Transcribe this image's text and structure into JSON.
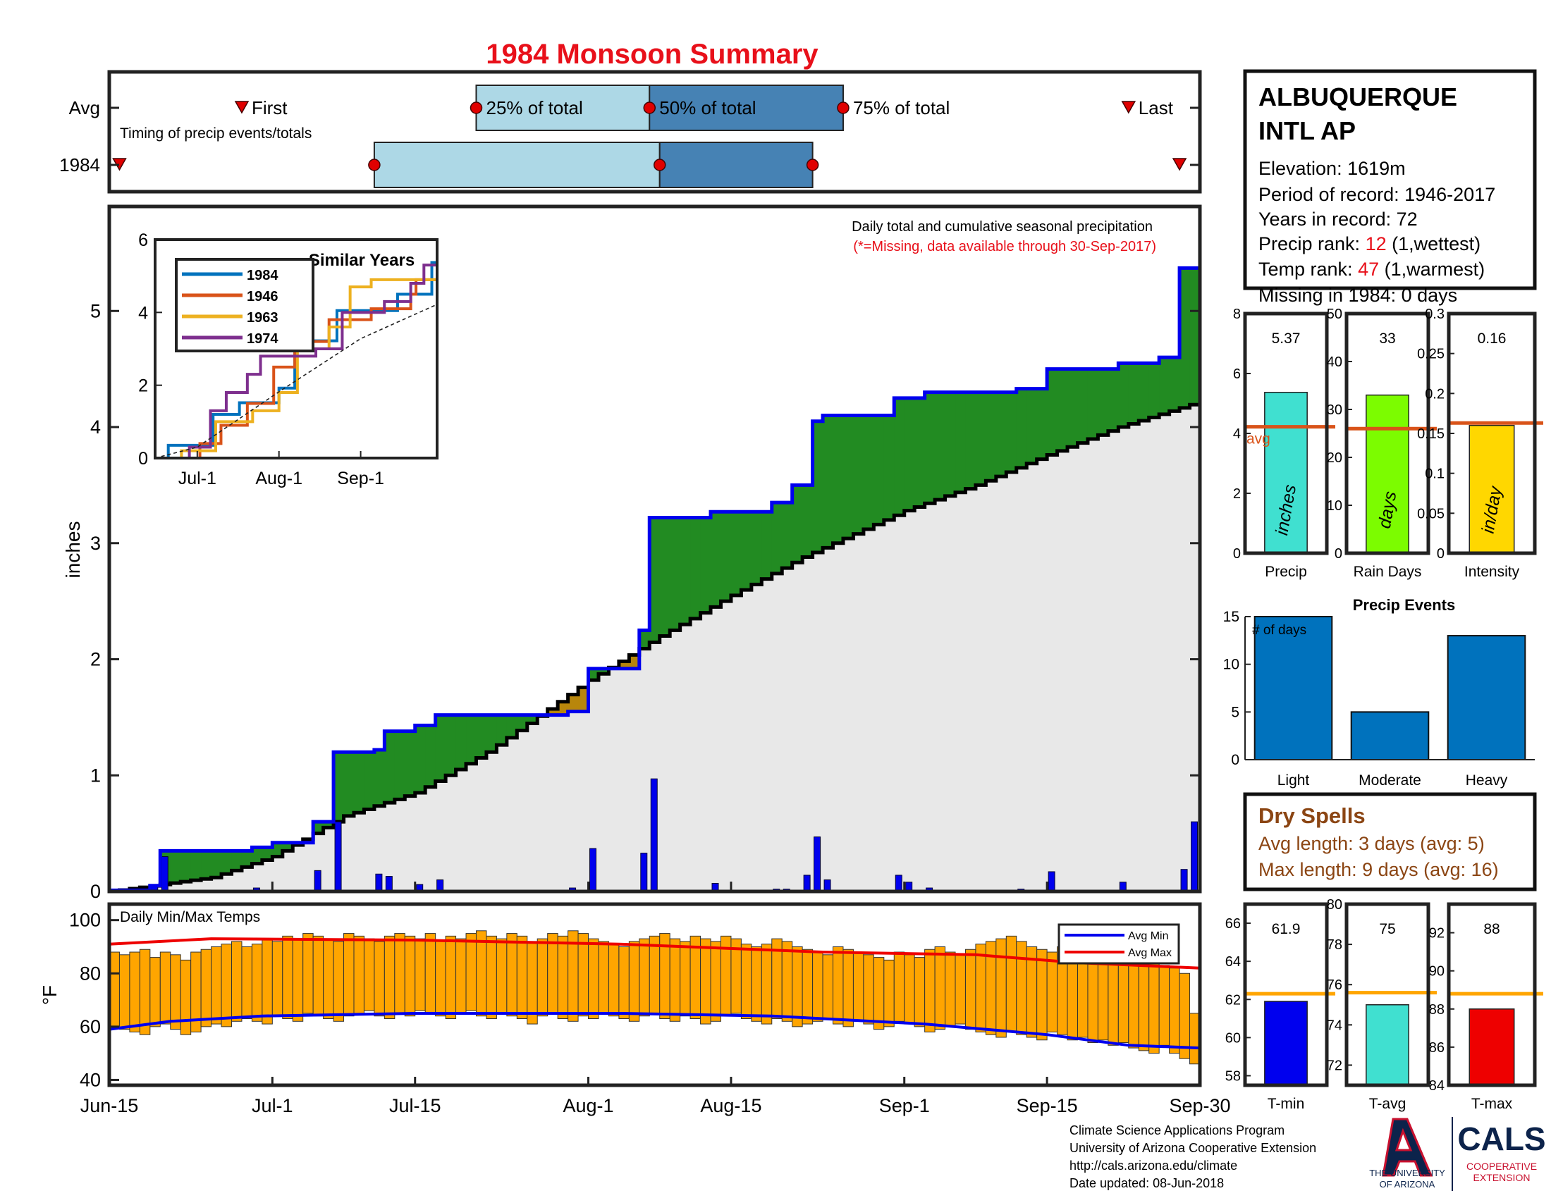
{
  "title": "1984 Monsoon Summary",
  "timing": {
    "row_labels": [
      "Avg",
      "1984"
    ],
    "first_label": "First",
    "last_label": "Last",
    "p25_label": "25% of total",
    "p50_label": "50% of total",
    "p75_label": "75% of total",
    "caption": "Timing of precip events/totals",
    "avg": {
      "first": "2017-06-28",
      "p25": "2017-07-21",
      "p50": "2017-08-07",
      "p75": "2017-08-26",
      "last": "2017-09-23"
    },
    "year": {
      "first": "2017-06-16",
      "p25": "2017-07-11",
      "p50": "2017-08-08",
      "p75": "2017-08-23",
      "last": "2017-09-28"
    }
  },
  "station": {
    "name_line1": "ALBUQUERQUE",
    "name_line2": "INTL AP",
    "elevation": "Elevation: 1619m",
    "period": "Period of record: 1946-2017",
    "years": "Years in record: 72",
    "precip_rank_label": "Precip rank: ",
    "precip_rank_value": "12",
    "precip_rank_suffix": " (1,wettest)",
    "temp_rank_label": "Temp rank: ",
    "temp_rank_value": "47",
    "temp_rank_suffix": " (1,warmest)",
    "missing": "Missing in 1984: 0 days"
  },
  "main_chart": {
    "ylabel": "inches",
    "legend_line1": "Daily total and cumulative seasonal precipitation",
    "legend_line2": "(*=Missing, data available through 30-Sep-2017)",
    "yticks": [
      0,
      1,
      2,
      3,
      4,
      5
    ],
    "xticks": [
      {
        "label": "Jun-15",
        "date": "2017-06-15"
      },
      {
        "label": "Jul-1",
        "date": "2017-07-01"
      },
      {
        "label": "Jul-15",
        "date": "2017-07-15"
      },
      {
        "label": "Aug-1",
        "date": "2017-08-01"
      },
      {
        "label": "Aug-15",
        "date": "2017-08-15"
      },
      {
        "label": "Sep-1",
        "date": "2017-09-01"
      },
      {
        "label": "Sep-15",
        "date": "2017-09-15"
      },
      {
        "label": "Sep-30",
        "date": "2017-09-30"
      }
    ],
    "colors": {
      "above": "#228B22",
      "below": "#B8860B",
      "cum": "#0000EE",
      "avg_fill": "#E8E8E8",
      "daily": "#0000EE"
    }
  },
  "inset": {
    "title": "Similar Years",
    "yticks": [
      0,
      2,
      4,
      6
    ],
    "xticks": [
      {
        "label": "Jul-1",
        "date": "2017-07-01"
      },
      {
        "label": "Aug-1",
        "date": "2017-08-01"
      },
      {
        "label": "Sep-1",
        "date": "2017-09-01"
      }
    ],
    "legend": [
      {
        "name": "1984",
        "color": "#0072BD"
      },
      {
        "name": "1946",
        "color": "#D95319"
      },
      {
        "name": "1963",
        "color": "#EDB120"
      },
      {
        "name": "1974",
        "color": "#7E2F8E"
      }
    ]
  },
  "chart_data": [
    {
      "type": "area",
      "id": "cumulative-precip",
      "xlabel": "",
      "ylabel": "inches",
      "ylim": [
        0,
        5.9
      ],
      "x_range": [
        "2017-06-15",
        "2017-09-30"
      ],
      "series": [
        {
          "name": "1984",
          "points": [
            [
              "2017-06-15",
              0.01
            ],
            [
              "2017-06-19",
              0.05
            ],
            [
              "2017-06-20",
              0.35
            ],
            [
              "2017-06-29",
              0.38
            ],
            [
              "2017-07-01",
              0.42
            ],
            [
              "2017-07-05",
              0.6
            ],
            [
              "2017-07-07",
              1.2
            ],
            [
              "2017-07-11",
              1.22
            ],
            [
              "2017-07-12",
              1.38
            ],
            [
              "2017-07-15",
              1.43
            ],
            [
              "2017-07-17",
              1.52
            ],
            [
              "2017-07-30",
              1.55
            ],
            [
              "2017-08-01",
              1.92
            ],
            [
              "2017-08-06",
              2.25
            ],
            [
              "2017-08-07",
              3.22
            ],
            [
              "2017-08-13",
              3.27
            ],
            [
              "2017-08-19",
              3.35
            ],
            [
              "2017-08-21",
              3.5
            ],
            [
              "2017-08-23",
              4.05
            ],
            [
              "2017-08-24",
              4.1
            ],
            [
              "2017-08-31",
              4.25
            ],
            [
              "2017-09-03",
              4.3
            ],
            [
              "2017-09-12",
              4.33
            ],
            [
              "2017-09-15",
              4.5
            ],
            [
              "2017-09-22",
              4.55
            ],
            [
              "2017-09-26",
              4.6
            ],
            [
              "2017-09-28",
              5.37
            ],
            [
              "2017-09-30",
              5.37
            ]
          ]
        },
        {
          "name": "avg",
          "points": [
            [
              "2017-06-15",
              0.0
            ],
            [
              "2017-06-25",
              0.12
            ],
            [
              "2017-07-01",
              0.3
            ],
            [
              "2017-07-08",
              0.65
            ],
            [
              "2017-07-15",
              0.85
            ],
            [
              "2017-07-22",
              1.2
            ],
            [
              "2017-08-01",
              1.82
            ],
            [
              "2017-08-08",
              2.2
            ],
            [
              "2017-08-15",
              2.55
            ],
            [
              "2017-08-22",
              2.88
            ],
            [
              "2017-09-01",
              3.28
            ],
            [
              "2017-09-08",
              3.5
            ],
            [
              "2017-09-15",
              3.76
            ],
            [
              "2017-09-22",
              4.0
            ],
            [
              "2017-09-30",
              4.22
            ]
          ]
        }
      ],
      "daily": [
        [
          "2017-06-16",
          0.01
        ],
        [
          "2017-06-17",
          0.01
        ],
        [
          "2017-06-19",
          0.04
        ],
        [
          "2017-06-20",
          0.3
        ],
        [
          "2017-06-29",
          0.03
        ],
        [
          "2017-07-05",
          0.18
        ],
        [
          "2017-07-07",
          0.6
        ],
        [
          "2017-07-11",
          0.15
        ],
        [
          "2017-07-12",
          0.13
        ],
        [
          "2017-07-15",
          0.06
        ],
        [
          "2017-07-17",
          0.1
        ],
        [
          "2017-07-18",
          0.01
        ],
        [
          "2017-07-30",
          0.03
        ],
        [
          "2017-08-01",
          0.37
        ],
        [
          "2017-08-06",
          0.33
        ],
        [
          "2017-08-07",
          0.97
        ],
        [
          "2017-08-13",
          0.07
        ],
        [
          "2017-08-19",
          0.02
        ],
        [
          "2017-08-20",
          0.02
        ],
        [
          "2017-08-22",
          0.14
        ],
        [
          "2017-08-23",
          0.47
        ],
        [
          "2017-08-24",
          0.1
        ],
        [
          "2017-08-31",
          0.14
        ],
        [
          "2017-09-01",
          0.08
        ],
        [
          "2017-09-03",
          0.03
        ],
        [
          "2017-09-12",
          0.02
        ],
        [
          "2017-09-15",
          0.17
        ],
        [
          "2017-09-22",
          0.08
        ],
        [
          "2017-09-28",
          0.19
        ],
        [
          "2017-09-29",
          0.6
        ]
      ]
    },
    {
      "type": "line",
      "id": "similar-years",
      "title": "Similar Years",
      "ylim": [
        0,
        6
      ],
      "x_range": [
        "2017-06-15",
        "2017-09-30"
      ],
      "series": [
        {
          "name": "1984",
          "points": [
            [
              "2017-06-15",
              0.0
            ],
            [
              "2017-06-20",
              0.35
            ],
            [
              "2017-07-07",
              1.2
            ],
            [
              "2017-07-17",
              1.52
            ],
            [
              "2017-08-01",
              1.92
            ],
            [
              "2017-08-07",
              3.22
            ],
            [
              "2017-08-23",
              4.05
            ],
            [
              "2017-09-15",
              4.5
            ],
            [
              "2017-09-28",
              5.37
            ],
            [
              "2017-09-30",
              5.37
            ]
          ]
        },
        {
          "name": "1946",
          "points": [
            [
              "2017-06-15",
              0.0
            ],
            [
              "2017-07-02",
              0.4
            ],
            [
              "2017-07-10",
              0.9
            ],
            [
              "2017-07-20",
              1.5
            ],
            [
              "2017-07-30",
              2.5
            ],
            [
              "2017-08-07",
              3.2
            ],
            [
              "2017-08-20",
              3.8
            ],
            [
              "2017-09-05",
              4.1
            ],
            [
              "2017-09-20",
              4.5
            ],
            [
              "2017-09-22",
              4.9
            ],
            [
              "2017-09-30",
              4.9
            ]
          ]
        },
        {
          "name": "1963",
          "points": [
            [
              "2017-06-15",
              0.0
            ],
            [
              "2017-06-25",
              0.2
            ],
            [
              "2017-07-08",
              1.0
            ],
            [
              "2017-07-22",
              1.3
            ],
            [
              "2017-08-01",
              1.8
            ],
            [
              "2017-08-08",
              3.0
            ],
            [
              "2017-08-20",
              3.6
            ],
            [
              "2017-08-28",
              4.7
            ],
            [
              "2017-09-05",
              4.9
            ],
            [
              "2017-09-30",
              4.95
            ]
          ]
        },
        {
          "name": "1974",
          "points": [
            [
              "2017-06-15",
              0.0
            ],
            [
              "2017-06-28",
              0.3
            ],
            [
              "2017-07-06",
              1.3
            ],
            [
              "2017-07-12",
              1.8
            ],
            [
              "2017-07-20",
              2.3
            ],
            [
              "2017-07-25",
              2.8
            ],
            [
              "2017-08-15",
              3.0
            ],
            [
              "2017-08-25",
              4.0
            ],
            [
              "2017-09-10",
              4.3
            ],
            [
              "2017-09-20",
              4.8
            ],
            [
              "2017-09-25",
              5.3
            ],
            [
              "2017-09-30",
              5.3
            ]
          ]
        },
        {
          "name": "avg",
          "points": [
            [
              "2017-06-15",
              0.0
            ],
            [
              "2017-07-01",
              0.3
            ],
            [
              "2017-08-01",
              1.82
            ],
            [
              "2017-09-01",
              3.28
            ],
            [
              "2017-09-30",
              4.22
            ]
          ]
        }
      ]
    },
    {
      "type": "bar",
      "id": "precip-totals",
      "panels": [
        {
          "label": "Precip",
          "value": 5.37,
          "value_label": "5.37",
          "avg": 4.22,
          "ylim": [
            0,
            8
          ],
          "yticks": [
            0,
            2,
            4,
            6,
            8
          ],
          "unit": "inches",
          "color": "#40E0D0",
          "avg_label": "avg"
        },
        {
          "label": "Rain Days",
          "value": 33,
          "value_label": "33",
          "avg": 26,
          "ylim": [
            0,
            50
          ],
          "yticks": [
            0,
            10,
            20,
            30,
            40,
            50
          ],
          "unit": "days",
          "color": "#7CFC00"
        },
        {
          "label": "Intensity",
          "value": 0.16,
          "value_label": "0.16",
          "avg": 0.163,
          "ylim": [
            0,
            0.3
          ],
          "yticks": [
            0,
            0.05,
            0.1,
            0.15,
            0.2,
            0.25,
            0.3
          ],
          "unit": "in/day",
          "color": "#FFD700"
        }
      ]
    },
    {
      "type": "bar",
      "id": "precip-events",
      "title": "Precip Events",
      "ylabel": "# of days",
      "categories": [
        "Light",
        "Moderate",
        "Heavy"
      ],
      "values": [
        15,
        5,
        13
      ],
      "ylim": [
        0,
        15
      ],
      "yticks": [
        0,
        5,
        10,
        15
      ]
    },
    {
      "type": "bar",
      "id": "daily-temps",
      "title": "Daily Min/Max Temps",
      "ylabel": "°F",
      "ylim": [
        38,
        106
      ],
      "yticks": [
        40,
        60,
        80,
        100
      ],
      "x_range": [
        "2017-06-15",
        "2017-09-30"
      ],
      "daily_min": [
        60,
        59,
        58,
        57,
        60,
        61,
        59,
        57,
        58,
        60,
        61,
        60,
        62,
        63,
        62,
        61,
        64,
        63,
        62,
        65,
        64,
        63,
        62,
        64,
        65,
        66,
        64,
        63,
        65,
        64,
        66,
        65,
        64,
        63,
        65,
        66,
        64,
        63,
        65,
        64,
        63,
        61,
        64,
        65,
        63,
        62,
        64,
        63,
        65,
        64,
        63,
        62,
        64,
        65,
        63,
        62,
        64,
        63,
        61,
        62,
        64,
        65,
        63,
        62,
        61,
        63,
        62,
        60,
        61,
        62,
        63,
        61,
        60,
        62,
        61,
        59,
        60,
        62,
        61,
        60,
        58,
        59,
        60,
        61,
        59,
        58,
        57,
        56,
        58,
        57,
        56,
        55,
        58,
        57,
        55,
        56,
        54,
        55,
        53,
        54,
        52,
        51,
        50,
        53,
        50,
        48,
        46
      ],
      "daily_max": [
        88,
        87,
        88,
        89,
        86,
        88,
        87,
        85,
        88,
        89,
        90,
        91,
        92,
        90,
        91,
        93,
        92,
        94,
        93,
        95,
        94,
        93,
        92,
        95,
        94,
        93,
        92,
        94,
        95,
        94,
        93,
        95,
        92,
        94,
        93,
        95,
        96,
        94,
        93,
        95,
        94,
        92,
        93,
        95,
        94,
        96,
        95,
        93,
        92,
        91,
        90,
        92,
        93,
        94,
        95,
        93,
        92,
        94,
        93,
        92,
        94,
        93,
        91,
        90,
        91,
        93,
        92,
        90,
        89,
        88,
        87,
        90,
        89,
        88,
        87,
        86,
        85,
        88,
        87,
        86,
        89,
        90,
        88,
        87,
        89,
        91,
        92,
        93,
        94,
        92,
        90,
        89,
        88,
        90,
        89,
        91,
        88,
        87,
        86,
        85,
        84,
        86,
        85,
        83,
        82,
        80,
        65
      ],
      "avg_min": [
        [
          0,
          59
        ],
        [
          6,
          62
        ],
        [
          15,
          64
        ],
        [
          30,
          65
        ],
        [
          50,
          65
        ],
        [
          65,
          64
        ],
        [
          80,
          61
        ],
        [
          92,
          57
        ],
        [
          100,
          53
        ],
        [
          107,
          52
        ]
      ],
      "avg_max": [
        [
          0,
          91
        ],
        [
          10,
          93
        ],
        [
          30,
          92.5
        ],
        [
          50,
          91
        ],
        [
          70,
          88
        ],
        [
          85,
          87
        ],
        [
          95,
          84
        ],
        [
          107,
          82
        ]
      ],
      "legend": [
        {
          "name": "Avg Min",
          "color": "#0000EE"
        },
        {
          "name": "Avg Max",
          "color": "#EE0000"
        }
      ]
    },
    {
      "type": "bar",
      "id": "temp-summary",
      "avg_color": "#FFA500",
      "panels": [
        {
          "label": "T-min",
          "value": 61.9,
          "value_label": "61.9",
          "avg": 62.3,
          "ylim": [
            57.5,
            67
          ],
          "yticks": [
            58,
            60,
            62,
            64,
            66
          ],
          "color": "#0000EE"
        },
        {
          "label": "T-avg",
          "value": 75,
          "value_label": "75",
          "avg": 75.6,
          "ylim": [
            71,
            80
          ],
          "yticks": [
            72,
            74,
            76,
            78,
            80
          ],
          "color": "#40E0D0"
        },
        {
          "label": "T-max",
          "value": 88,
          "value_label": "88",
          "avg": 88.8,
          "ylim": [
            84,
            93.5
          ],
          "yticks": [
            84,
            86,
            88,
            90,
            92
          ],
          "color": "#EE0000"
        }
      ]
    }
  ],
  "dry_spells": {
    "title": "Dry Spells",
    "avg_length": "Avg length: 3 days (avg: 5)",
    "max_length": "Max length: 9 days (avg: 16)"
  },
  "footer": {
    "line1": "Climate Science Applications Program",
    "line2": "University of Arizona Cooperative Extension",
    "line3": "http://cals.arizona.edu/climate",
    "line4": " Date updated: 08-Jun-2018"
  },
  "logos": {
    "ua_line1": "THE UNIVERSITY",
    "ua_line2": "OF ARIZONA",
    "cals": "CALS",
    "cals_sub1": "COOPERATIVE",
    "cals_sub2": "EXTENSION"
  }
}
